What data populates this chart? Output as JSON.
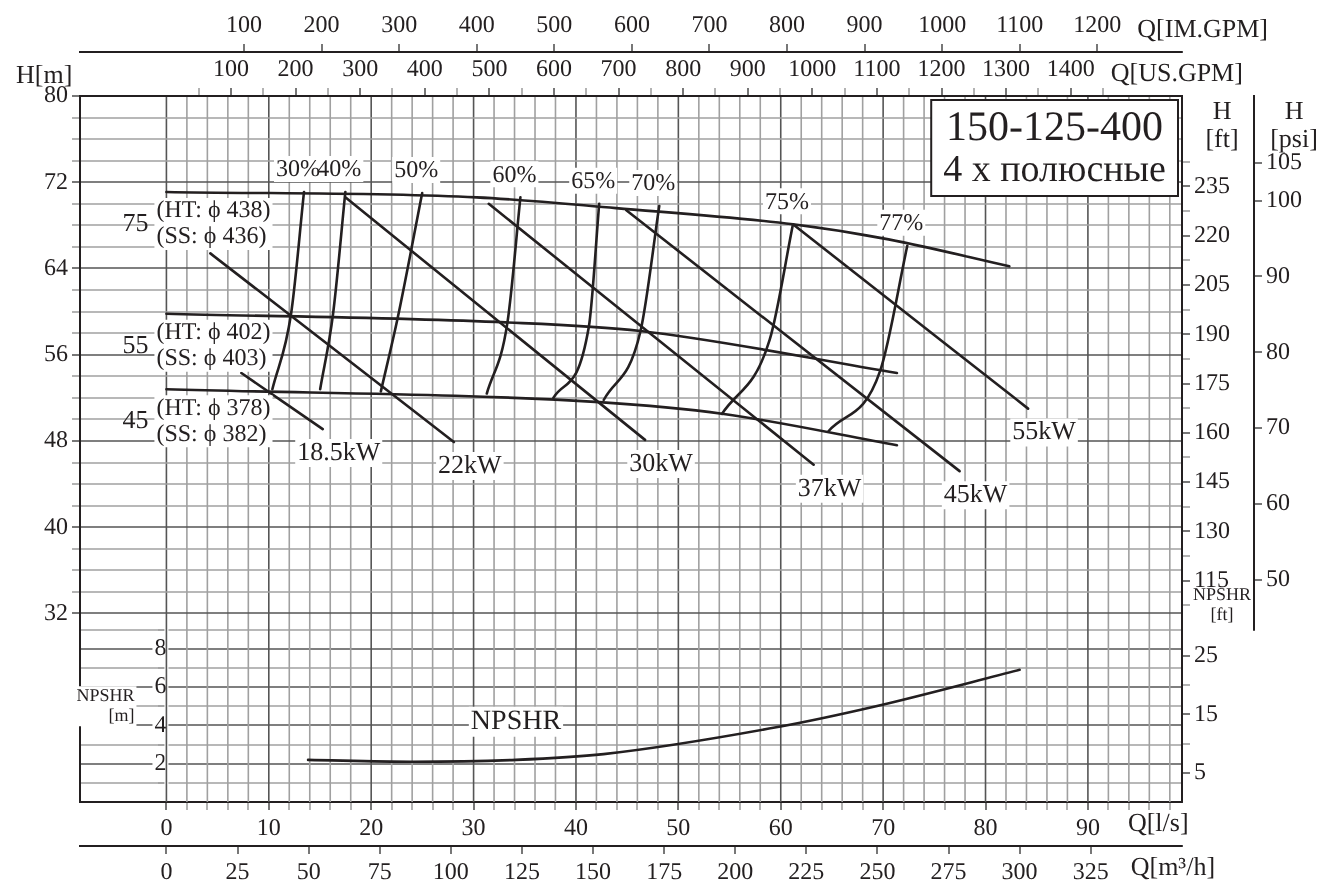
{
  "chart_data": [
    {
      "type": "line",
      "title": "150-125-400",
      "subtitle": "4 x полюсные",
      "xlabel": "Q[US.GPM]",
      "xlim": [
        -133.8,
        1572.3
      ],
      "xticks": [
        {
          "value": 50,
          "label": null
        },
        100,
        {
          "value": 150,
          "label": null
        },
        200,
        {
          "value": 250,
          "label": null
        },
        300,
        {
          "value": 350,
          "label": null
        },
        400,
        {
          "value": 450,
          "label": null
        },
        500,
        {
          "value": 550,
          "label": null
        },
        600,
        {
          "value": 650,
          "label": null
        },
        700,
        {
          "value": 750,
          "label": null
        },
        800,
        {
          "value": 850,
          "label": null
        },
        900,
        {
          "value": 950,
          "label": null
        },
        1000,
        {
          "value": 1050,
          "label": null
        },
        1100,
        {
          "value": 1150,
          "label": null
        },
        1200,
        {
          "value": 1250,
          "label": null
        },
        1300,
        {
          "value": 1350,
          "label": null
        },
        1400,
        {
          "value": 1450,
          "label": null
        }
      ],
      "x2label": "Q[IM.GPM]",
      "x2lim": [
        -111.5,
        1309.2
      ],
      "x2ticks": [
        100,
        200,
        300,
        400,
        500,
        600,
        700,
        800,
        900,
        1000,
        1100,
        1200
      ],
      "ylabel": "H[m]",
      "ylim": [
        30.5,
        80
      ],
      "yticks": [
        32,
        {
          "value": 34,
          "label": null
        },
        {
          "value": 36,
          "label": null
        },
        {
          "value": 38,
          "label": null
        },
        40,
        {
          "value": 42,
          "label": null
        },
        {
          "value": 44,
          "label": null
        },
        {
          "value": 46,
          "label": null
        },
        48,
        {
          "value": 50,
          "label": null
        },
        {
          "value": 52,
          "label": null
        },
        {
          "value": 54,
          "label": null
        },
        56,
        {
          "value": 58,
          "label": null
        },
        {
          "value": 60,
          "label": null
        },
        {
          "value": 62,
          "label": null
        },
        64,
        {
          "value": 66,
          "label": null
        },
        {
          "value": 68,
          "label": null
        },
        {
          "value": 70,
          "label": null
        },
        72,
        {
          "value": 74,
          "label": null
        },
        {
          "value": 76,
          "label": null
        },
        {
          "value": 78,
          "label": null
        },
        80
      ],
      "y2label": "H\n[ft]",
      "y2lim": [
        100.1,
        262.5
      ],
      "y2ticks": [
        {
          "value": 107.5,
          "label": null
        },
        115,
        {
          "value": 122.5,
          "label": null
        },
        130,
        {
          "value": 137.5,
          "label": null
        },
        145,
        {
          "value": 152.5,
          "label": null
        },
        160,
        {
          "value": 167.5,
          "label": null
        },
        175,
        {
          "value": 182.5,
          "label": null
        },
        190,
        {
          "value": 197.5,
          "label": null
        },
        205,
        {
          "value": 212.5,
          "label": null
        },
        220,
        {
          "value": 227.5,
          "label": null
        },
        235,
        {
          "value": 242.5,
          "label": null
        }
      ],
      "y3label": "H\n[psi]",
      "y3lim": [
        43.4,
        113.8
      ],
      "y3ticks": [
        50,
        60,
        70,
        80,
        90,
        100,
        105
      ],
      "grid": "y",
      "series": [
        {
          "name": "75\n(HT: ϕ 438)\n(SS: ϕ 436)",
          "color": "#231f20",
          "x": [
            0,
            480,
            696,
            970,
            1118,
            1305
          ],
          "values": [
            71.1,
            70.6,
            69.6,
            68.1,
            66.7,
            64.2
          ]
        },
        {
          "name": "55\n(HT: ϕ 402)\n(SS: ϕ 403)",
          "color": "#231f20",
          "x": [
            0,
            525,
            734,
            1131
          ],
          "values": [
            59.8,
            59.0,
            58.2,
            54.3
          ]
        },
        {
          "name": "45\n(HT: ϕ 378)\n(SS: ϕ 382)",
          "color": "#231f20",
          "x": [
            0,
            670,
            863,
            1131
          ],
          "values": [
            52.8,
            51.6,
            50.5,
            47.6
          ]
        },
        {
          "name": "30%",
          "color": "#231f20",
          "x": [
            213,
            193,
            164
          ],
          "values": [
            71.1,
            59.8,
            52.8
          ]
        },
        {
          "name": "40%",
          "color": "#231f20",
          "x": [
            277,
            258,
            238
          ],
          "values": [
            71.1,
            59.8,
            52.8
          ]
        },
        {
          "name": "50%",
          "color": "#231f20",
          "x": [
            396,
            358,
            332
          ],
          "values": [
            71.0,
            59.4,
            52.6
          ]
        },
        {
          "name": "60%",
          "color": "#231f20",
          "x": [
            548,
            528,
            496
          ],
          "values": [
            70.6,
            59.0,
            52.4
          ]
        },
        {
          "name": "65%",
          "color": "#231f20",
          "x": [
            670,
            654,
            599
          ],
          "values": [
            70.0,
            58.6,
            52.0
          ]
        },
        {
          "name": "70%",
          "color": "#231f20",
          "x": [
            763,
            734,
            677
          ],
          "values": [
            69.8,
            58.2,
            51.8
          ]
        },
        {
          "name": "75%",
          "color": "#231f20",
          "x": [
            970,
            934,
            860
          ],
          "values": [
            68.1,
            57.4,
            50.5
          ]
        },
        {
          "name": "77%",
          "color": "#231f20",
          "x": [
            1147,
            1105,
            1025
          ],
          "values": [
            66.1,
            54.5,
            48.9
          ]
        },
        {
          "name": "18.5kW",
          "color": "#231f20",
          "x": [
            116,
            242
          ],
          "values": [
            54.3,
            49.1
          ]
        },
        {
          "name": "22kW",
          "color": "#231f20",
          "x": [
            68,
            445
          ],
          "values": [
            65.4,
            47.9
          ]
        },
        {
          "name": "30kW",
          "color": "#231f20",
          "x": [
            277,
            741
          ],
          "values": [
            70.6,
            48.1
          ]
        },
        {
          "name": "37kW",
          "color": "#231f20",
          "x": [
            499,
            1002
          ],
          "values": [
            70.0,
            45.8
          ]
        },
        {
          "name": "45kW",
          "color": "#231f20",
          "x": [
            712,
            1228
          ],
          "values": [
            69.4,
            45.2
          ]
        },
        {
          "name": "55kW",
          "color": "#231f20",
          "x": [
            970,
            1334
          ],
          "values": [
            68.1,
            51.0
          ]
        }
      ]
    },
    {
      "type": "line",
      "xlabel": "Q[m³/h]",
      "xlim": [
        -30.4,
        357.1
      ],
      "xticks": [
        0,
        25,
        50,
        75,
        100,
        125,
        150,
        175,
        200,
        225,
        250,
        275,
        300,
        325
      ],
      "x2label": "Q[l/s]",
      "x2lim": [
        -8.44,
        99.19
      ],
      "x2ticks": [
        0,
        {
          "value": 2,
          "label": null
        },
        {
          "value": 4,
          "label": null
        },
        {
          "value": 6,
          "label": null
        },
        {
          "value": 8,
          "label": null
        },
        10,
        {
          "value": 12,
          "label": null
        },
        {
          "value": 14,
          "label": null
        },
        {
          "value": 16,
          "label": null
        },
        {
          "value": 18,
          "label": null
        },
        20,
        {
          "value": 22,
          "label": null
        },
        {
          "value": 24,
          "label": null
        },
        {
          "value": 26,
          "label": null
        },
        {
          "value": 28,
          "label": null
        },
        30,
        {
          "value": 32,
          "label": null
        },
        {
          "value": 34,
          "label": null
        },
        {
          "value": 36,
          "label": null
        },
        {
          "value": 38,
          "label": null
        },
        40,
        {
          "value": 42,
          "label": null
        },
        {
          "value": 44,
          "label": null
        },
        {
          "value": 46,
          "label": null
        },
        {
          "value": 48,
          "label": null
        },
        50,
        {
          "value": 52,
          "label": null
        },
        {
          "value": 54,
          "label": null
        },
        {
          "value": 56,
          "label": null
        },
        {
          "value": 58,
          "label": null
        },
        60,
        {
          "value": 62,
          "label": null
        },
        {
          "value": 64,
          "label": null
        },
        {
          "value": 66,
          "label": null
        },
        {
          "value": 68,
          "label": null
        },
        70,
        {
          "value": 72,
          "label": null
        },
        {
          "value": 74,
          "label": null
        },
        {
          "value": 76,
          "label": null
        },
        {
          "value": 78,
          "label": null
        },
        80,
        {
          "value": 82,
          "label": null
        },
        {
          "value": 84,
          "label": null
        },
        {
          "value": 86,
          "label": null
        },
        {
          "value": 88,
          "label": null
        },
        90,
        {
          "value": 92,
          "label": null
        },
        {
          "value": 94,
          "label": null
        },
        {
          "value": 96,
          "label": null
        },
        {
          "value": 98,
          "label": null
        }
      ],
      "ylabel": "NPSHR\n[m]",
      "ylim": [
        0,
        9
      ],
      "yticks": [
        {
          "value": 1,
          "label": null
        },
        2,
        {
          "value": 3,
          "label": null
        },
        4,
        {
          "value": 5,
          "label": null
        },
        6,
        {
          "value": 7,
          "label": null
        },
        8,
        {
          "value": 9,
          "label": null
        }
      ],
      "y2label": "NPSHR\n[ft]",
      "y2lim": [
        0,
        29.5
      ],
      "y2ticks": [
        5,
        {
          "value": 10,
          "label": null
        },
        15,
        {
          "value": 20,
          "label": null
        },
        25
      ],
      "grid": true,
      "series": [
        {
          "name": "NPSHR",
          "color": "#231f20",
          "x": [
            49.8,
            86.3,
            122.9,
            153.7,
            214.4,
            249.5,
            300.0
          ],
          "values": [
            2.2,
            2.1,
            2.2,
            2.5,
            3.9,
            5.0,
            6.9
          ]
        }
      ]
    }
  ]
}
